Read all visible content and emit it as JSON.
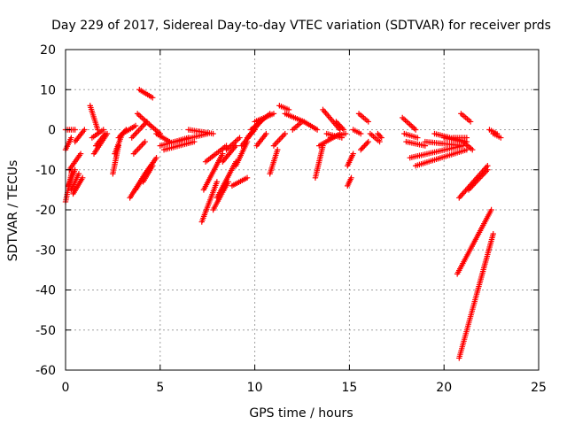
{
  "chart_data": {
    "type": "scatter",
    "title": "Day 229 of 2017, Sidereal Day-to-day VTEC variation (SDTVAR) for receiver prds",
    "xlabel": "GPS time / hours",
    "ylabel": "SDTVAR / TECUs",
    "xlim": [
      0,
      25
    ],
    "ylim": [
      -60,
      20
    ],
    "xticks": [
      0,
      5,
      10,
      15,
      20,
      25
    ],
    "yticks": [
      -60,
      -50,
      -40,
      -30,
      -20,
      -10,
      0,
      10,
      20
    ],
    "grid": true,
    "marker": "+",
    "color": "#ff0000",
    "segments": [
      {
        "x": [
          0.0,
          0.5
        ],
        "y": [
          0,
          0
        ]
      },
      {
        "x": [
          0.0,
          0.3
        ],
        "y": [
          -5,
          -2
        ]
      },
      {
        "x": [
          0.0,
          0.35
        ],
        "y": [
          -18,
          -10
        ]
      },
      {
        "x": [
          0.15,
          0.5
        ],
        "y": [
          -14,
          -10
        ]
      },
      {
        "x": [
          0.3,
          0.7
        ],
        "y": [
          -15,
          -11
        ]
      },
      {
        "x": [
          0.4,
          0.9
        ],
        "y": [
          -16,
          -12
        ]
      },
      {
        "x": [
          0.2,
          0.8
        ],
        "y": [
          -10,
          -6
        ]
      },
      {
        "x": [
          0.5,
          1.0
        ],
        "y": [
          -3,
          0
        ]
      },
      {
        "x": [
          1.3,
          1.7
        ],
        "y": [
          6,
          0
        ]
      },
      {
        "x": [
          1.4,
          2.0
        ],
        "y": [
          -2,
          0
        ]
      },
      {
        "x": [
          1.5,
          2.2
        ],
        "y": [
          -6,
          -1
        ]
      },
      {
        "x": [
          1.6,
          2.1
        ],
        "y": [
          -4,
          -1
        ]
      },
      {
        "x": [
          2.5,
          2.8
        ],
        "y": [
          -11,
          -4
        ]
      },
      {
        "x": [
          2.6,
          3.0
        ],
        "y": [
          -6,
          -1
        ]
      },
      {
        "x": [
          2.8,
          3.2
        ],
        "y": [
          -2,
          0
        ]
      },
      {
        "x": [
          3.0,
          3.7
        ],
        "y": [
          -1,
          1
        ]
      },
      {
        "x": [
          3.5,
          4.3
        ],
        "y": [
          -2,
          2
        ]
      },
      {
        "x": [
          3.6,
          4.2
        ],
        "y": [
          -6,
          -3
        ]
      },
      {
        "x": [
          3.4,
          4.2
        ],
        "y": [
          -17,
          -11
        ]
      },
      {
        "x": [
          3.7,
          4.5
        ],
        "y": [
          -15,
          -9
        ]
      },
      {
        "x": [
          4.1,
          4.6
        ],
        "y": [
          -13,
          -9
        ]
      },
      {
        "x": [
          3.9,
          4.6
        ],
        "y": [
          10,
          8
        ]
      },
      {
        "x": [
          3.8,
          4.5
        ],
        "y": [
          4,
          1
        ]
      },
      {
        "x": [
          4.2,
          4.8
        ],
        "y": [
          -11,
          -7
        ]
      },
      {
        "x": [
          4.5,
          5.0
        ],
        "y": [
          1,
          -1
        ]
      },
      {
        "x": [
          4.8,
          5.5
        ],
        "y": [
          -1,
          -3
        ]
      },
      {
        "x": [
          5.0,
          6.5
        ],
        "y": [
          -4,
          -2
        ]
      },
      {
        "x": [
          5.2,
          6.8
        ],
        "y": [
          -5,
          -3
        ]
      },
      {
        "x": [
          5.8,
          7.5
        ],
        "y": [
          -3,
          -1
        ]
      },
      {
        "x": [
          6.5,
          7.8
        ],
        "y": [
          0,
          -1
        ]
      },
      {
        "x": [
          7.2,
          8.0
        ],
        "y": [
          -23,
          -13
        ]
      },
      {
        "x": [
          7.3,
          8.3
        ],
        "y": [
          -15,
          -6
        ]
      },
      {
        "x": [
          7.4,
          8.5
        ],
        "y": [
          -8,
          -4
        ]
      },
      {
        "x": [
          7.8,
          8.6
        ],
        "y": [
          -20,
          -13
        ]
      },
      {
        "x": [
          8.0,
          9.0
        ],
        "y": [
          -17,
          -8
        ]
      },
      {
        "x": [
          8.3,
          9.0
        ],
        "y": [
          -8,
          -4
        ]
      },
      {
        "x": [
          8.5,
          9.2
        ],
        "y": [
          -5,
          -2
        ]
      },
      {
        "x": [
          8.8,
          9.6
        ],
        "y": [
          -14,
          -12
        ]
      },
      {
        "x": [
          9.0,
          9.6
        ],
        "y": [
          -9,
          -3
        ]
      },
      {
        "x": [
          9.3,
          10.0
        ],
        "y": [
          -4,
          0
        ]
      },
      {
        "x": [
          9.6,
          10.3
        ],
        "y": [
          -2,
          2
        ]
      },
      {
        "x": [
          9.8,
          10.8
        ],
        "y": [
          0,
          4
        ]
      },
      {
        "x": [
          10.0,
          11.0
        ],
        "y": [
          2,
          4
        ]
      },
      {
        "x": [
          10.1,
          10.6
        ],
        "y": [
          -4,
          -1
        ]
      },
      {
        "x": [
          10.8,
          11.2
        ],
        "y": [
          -11,
          -5
        ]
      },
      {
        "x": [
          11.0,
          11.6
        ],
        "y": [
          -4,
          -1
        ]
      },
      {
        "x": [
          11.3,
          11.8
        ],
        "y": [
          6,
          5
        ]
      },
      {
        "x": [
          11.6,
          12.6
        ],
        "y": [
          4,
          2
        ]
      },
      {
        "x": [
          12.0,
          12.5
        ],
        "y": [
          0,
          2
        ]
      },
      {
        "x": [
          12.6,
          13.3
        ],
        "y": [
          2,
          0
        ]
      },
      {
        "x": [
          13.2,
          13.6
        ],
        "y": [
          -12,
          -4
        ]
      },
      {
        "x": [
          13.4,
          14.5
        ],
        "y": [
          -4,
          -1
        ]
      },
      {
        "x": [
          13.6,
          14.5
        ],
        "y": [
          5,
          0
        ]
      },
      {
        "x": [
          13.8,
          14.6
        ],
        "y": [
          -1,
          -2
        ]
      },
      {
        "x": [
          14.0,
          14.8
        ],
        "y": [
          -2,
          -1
        ]
      },
      {
        "x": [
          14.3,
          14.7
        ],
        "y": [
          2,
          0
        ]
      },
      {
        "x": [
          14.9,
          15.1
        ],
        "y": [
          -14,
          -12
        ]
      },
      {
        "x": [
          14.9,
          15.2
        ],
        "y": [
          -9,
          -6
        ]
      },
      {
        "x": [
          15.2,
          15.6
        ],
        "y": [
          0,
          -1
        ]
      },
      {
        "x": [
          15.5,
          16.0
        ],
        "y": [
          4,
          2
        ]
      },
      {
        "x": [
          15.6,
          16.0
        ],
        "y": [
          -5,
          -3
        ]
      },
      {
        "x": [
          16.1,
          16.6
        ],
        "y": [
          -1,
          -3
        ]
      },
      {
        "x": [
          16.5,
          16.7
        ],
        "y": [
          -1,
          -2
        ]
      },
      {
        "x": [
          17.8,
          18.5
        ],
        "y": [
          3,
          0
        ]
      },
      {
        "x": [
          17.9,
          18.6
        ],
        "y": [
          -1,
          -2
        ]
      },
      {
        "x": [
          18.0,
          19.0
        ],
        "y": [
          -3,
          -4
        ]
      },
      {
        "x": [
          18.2,
          21.0
        ],
        "y": [
          -7,
          -4
        ]
      },
      {
        "x": [
          18.5,
          21.2
        ],
        "y": [
          -9,
          -5
        ]
      },
      {
        "x": [
          19.0,
          21.0
        ],
        "y": [
          -3,
          -4
        ]
      },
      {
        "x": [
          19.5,
          21.2
        ],
        "y": [
          -1,
          -3
        ]
      },
      {
        "x": [
          20.0,
          21.0
        ],
        "y": [
          -2,
          -3
        ]
      },
      {
        "x": [
          20.5,
          21.2
        ],
        "y": [
          -2,
          -2
        ]
      },
      {
        "x": [
          20.9,
          21.4
        ],
        "y": [
          4,
          2
        ]
      },
      {
        "x": [
          21.0,
          21.5
        ],
        "y": [
          -3,
          -5
        ]
      },
      {
        "x": [
          20.8,
          22.3
        ],
        "y": [
          -17,
          -9
        ]
      },
      {
        "x": [
          21.3,
          22.3
        ],
        "y": [
          -15,
          -10
        ]
      },
      {
        "x": [
          20.7,
          22.5
        ],
        "y": [
          -36,
          -20
        ]
      },
      {
        "x": [
          20.8,
          22.6
        ],
        "y": [
          -57,
          -26
        ]
      },
      {
        "x": [
          22.4,
          22.8
        ],
        "y": [
          0,
          -1
        ]
      },
      {
        "x": [
          22.6,
          23.0
        ],
        "y": [
          -1,
          -2
        ]
      }
    ]
  }
}
